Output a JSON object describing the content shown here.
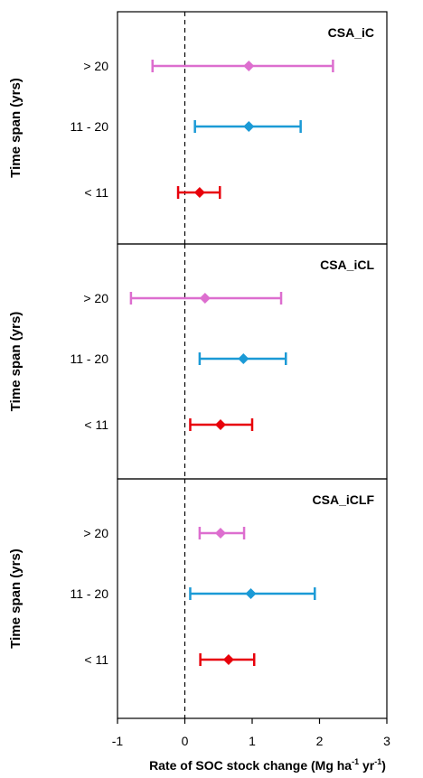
{
  "chart_data": [
    {
      "type": "scatter",
      "title": "CSA_iC",
      "ylabel": "Time span (yrs)",
      "categories": [
        "> 20",
        "11 - 20",
        "< 11"
      ],
      "points": [
        {
          "category": "> 20",
          "mean": 0.95,
          "lower": -0.48,
          "upper": 2.2,
          "color": "#dd6ecf"
        },
        {
          "category": "11 - 20",
          "mean": 0.95,
          "lower": 0.15,
          "upper": 1.72,
          "color": "#1b9ad6"
        },
        {
          "category": "< 11",
          "mean": 0.22,
          "lower": -0.1,
          "upper": 0.52,
          "color": "#e8000b"
        }
      ]
    },
    {
      "type": "scatter",
      "title": "CSA_iCL",
      "ylabel": "Time span (yrs)",
      "categories": [
        "> 20",
        "11 - 20",
        "< 11"
      ],
      "points": [
        {
          "category": "> 20",
          "mean": 0.3,
          "lower": -0.8,
          "upper": 1.43,
          "color": "#dd6ecf"
        },
        {
          "category": "11 - 20",
          "mean": 0.87,
          "lower": 0.22,
          "upper": 1.5,
          "color": "#1b9ad6"
        },
        {
          "category": "< 11",
          "mean": 0.53,
          "lower": 0.08,
          "upper": 1.0,
          "color": "#e8000b"
        }
      ]
    },
    {
      "type": "scatter",
      "title": "CSA_iCLF",
      "ylabel": "Time span (yrs)",
      "categories": [
        "> 20",
        "11 - 20",
        "< 11"
      ],
      "points": [
        {
          "category": "> 20",
          "mean": 0.53,
          "lower": 0.22,
          "upper": 0.88,
          "color": "#dd6ecf"
        },
        {
          "category": "11 - 20",
          "mean": 0.98,
          "lower": 0.08,
          "upper": 1.93,
          "color": "#1b9ad6"
        },
        {
          "category": "< 11",
          "mean": 0.65,
          "lower": 0.23,
          "upper": 1.03,
          "color": "#e8000b"
        }
      ]
    }
  ],
  "x_axis": {
    "label_main": "Rate of SOC stock change (Mg ha",
    "label_sup1": "-1",
    "label_mid": " yr",
    "label_sup2": "-1",
    "label_end": ")",
    "xlim": [
      -1,
      3
    ],
    "ticks": [
      -1,
      0,
      1,
      2,
      3
    ],
    "tick_labels": [
      "-1",
      "0",
      "1",
      "2",
      "3"
    ],
    "reference_line_at": 0
  }
}
